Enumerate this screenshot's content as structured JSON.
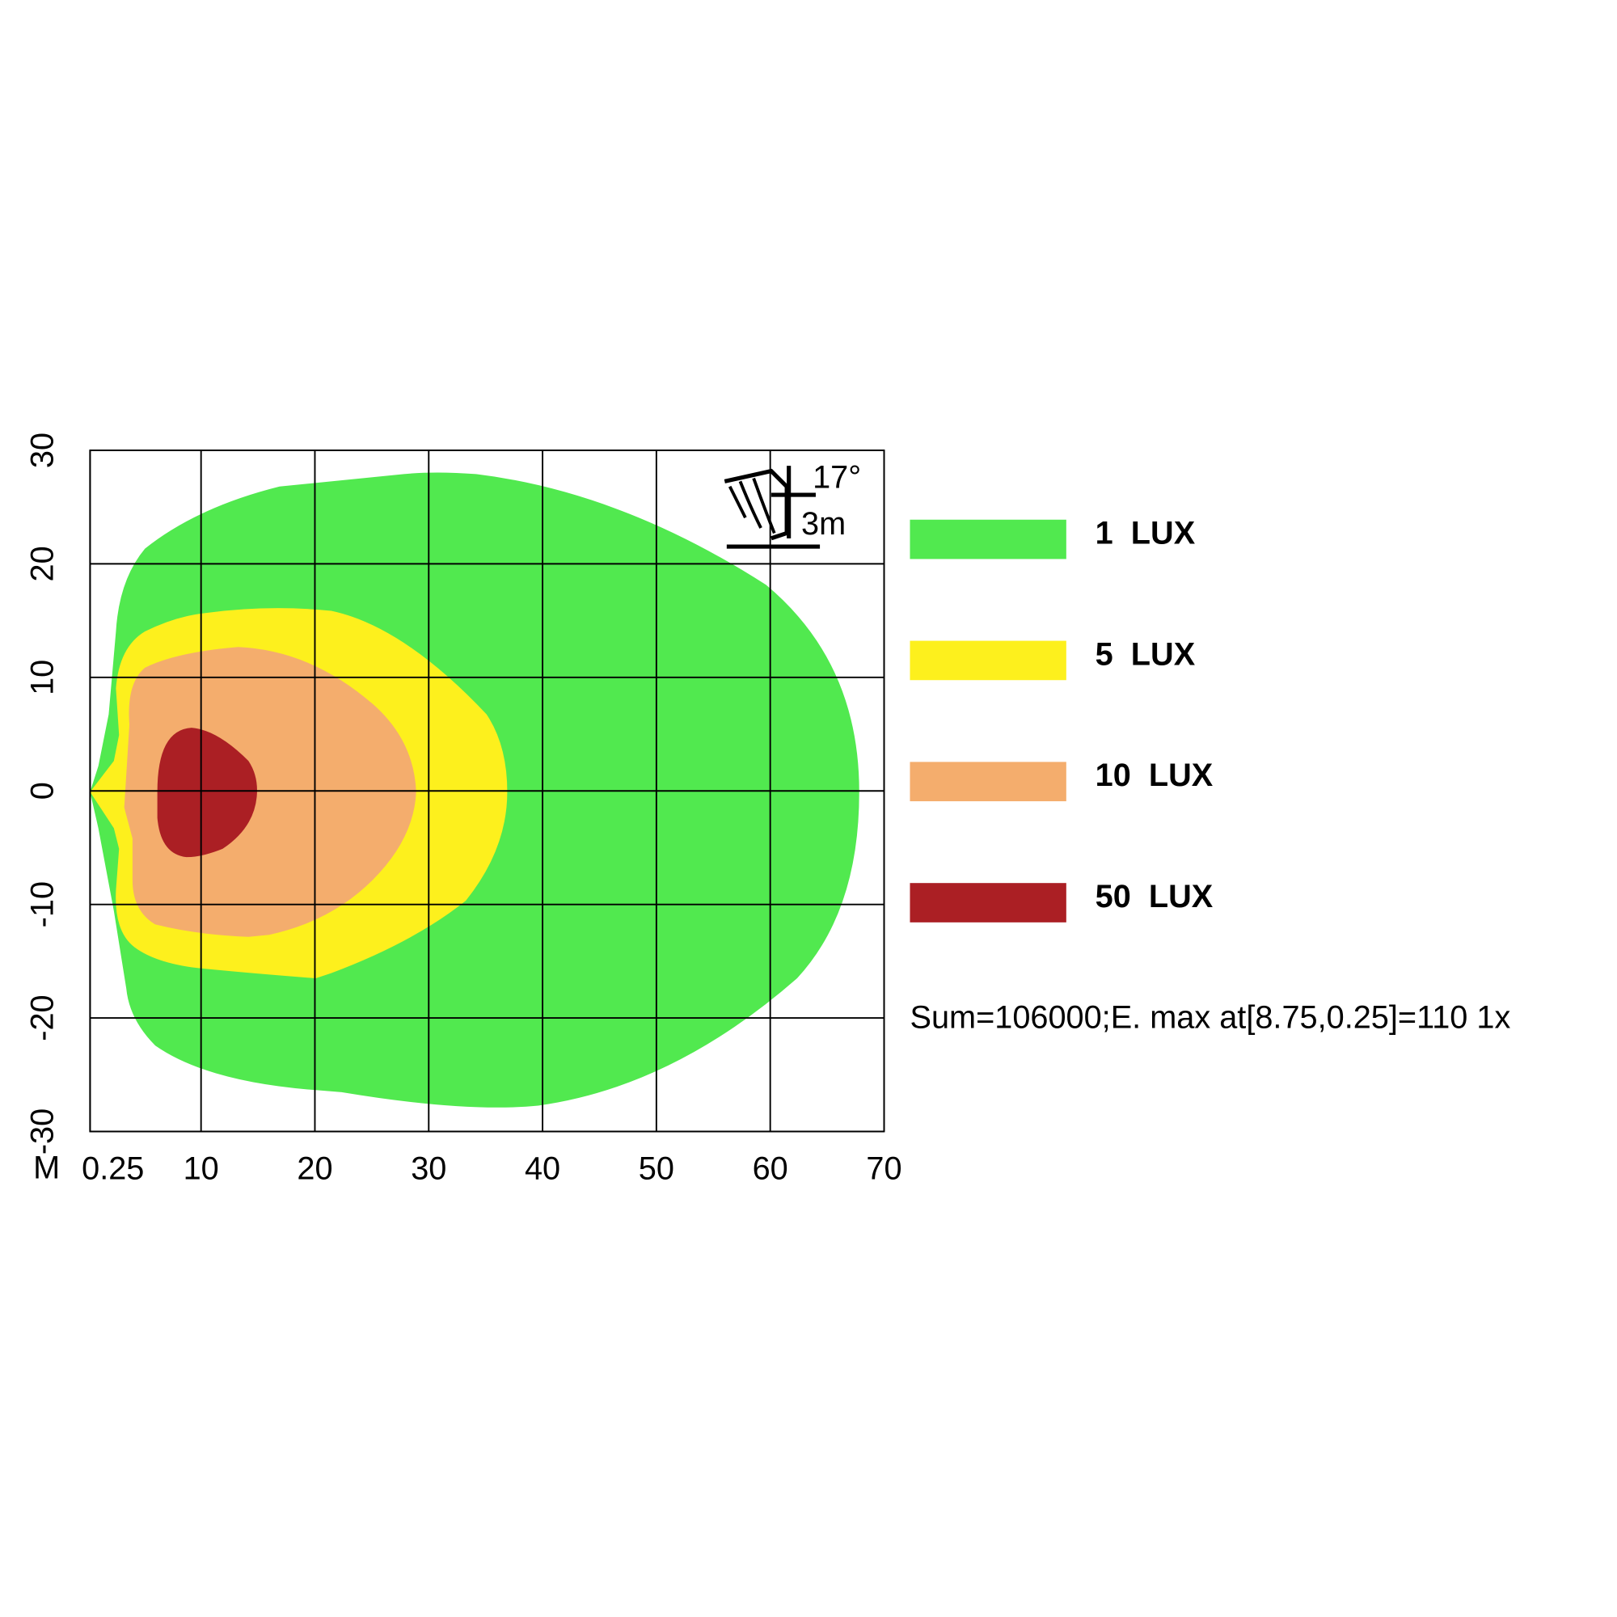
{
  "chart_data": {
    "type": "isolux",
    "x_unit_label": "M",
    "xlim": [
      0.25,
      70
    ],
    "xticks": [
      0.25,
      10,
      20,
      30,
      40,
      50,
      60,
      70
    ],
    "ylim": [
      -30,
      30
    ],
    "yticks": [
      30,
      20,
      10,
      0,
      -10,
      -20,
      -30
    ],
    "grid": true,
    "legend_position": "right",
    "series": [
      {
        "name": "1  LUX",
        "color": "#51e94f"
      },
      {
        "name": "5  LUX",
        "color": "#fdf01d"
      },
      {
        "name": "10  LUX",
        "color": "#f4ad6d"
      },
      {
        "name": "50  LUX",
        "color": "#ab1f24"
      }
    ],
    "annotations": {
      "angle": "17°",
      "height": "3m",
      "summary": "Sum=106000;E. max at[8.75,0.25]=110 1x"
    }
  }
}
